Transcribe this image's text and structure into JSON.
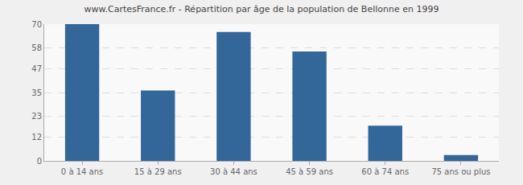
{
  "chart_data": {
    "type": "bar",
    "title": "www.CartesFrance.fr - Répartition par âge de la population de Bellonne en 1999",
    "categories": [
      "0 à 14 ans",
      "15 à 29 ans",
      "30 à 44 ans",
      "45 à 59 ans",
      "60 à 74 ans",
      "75 ans ou plus"
    ],
    "values": [
      70,
      36,
      66,
      56,
      18,
      3
    ],
    "color": "#336699",
    "ylim": [
      0,
      70
    ],
    "yticks": [
      0,
      12,
      23,
      35,
      47,
      58,
      70
    ],
    "grid": true
  }
}
